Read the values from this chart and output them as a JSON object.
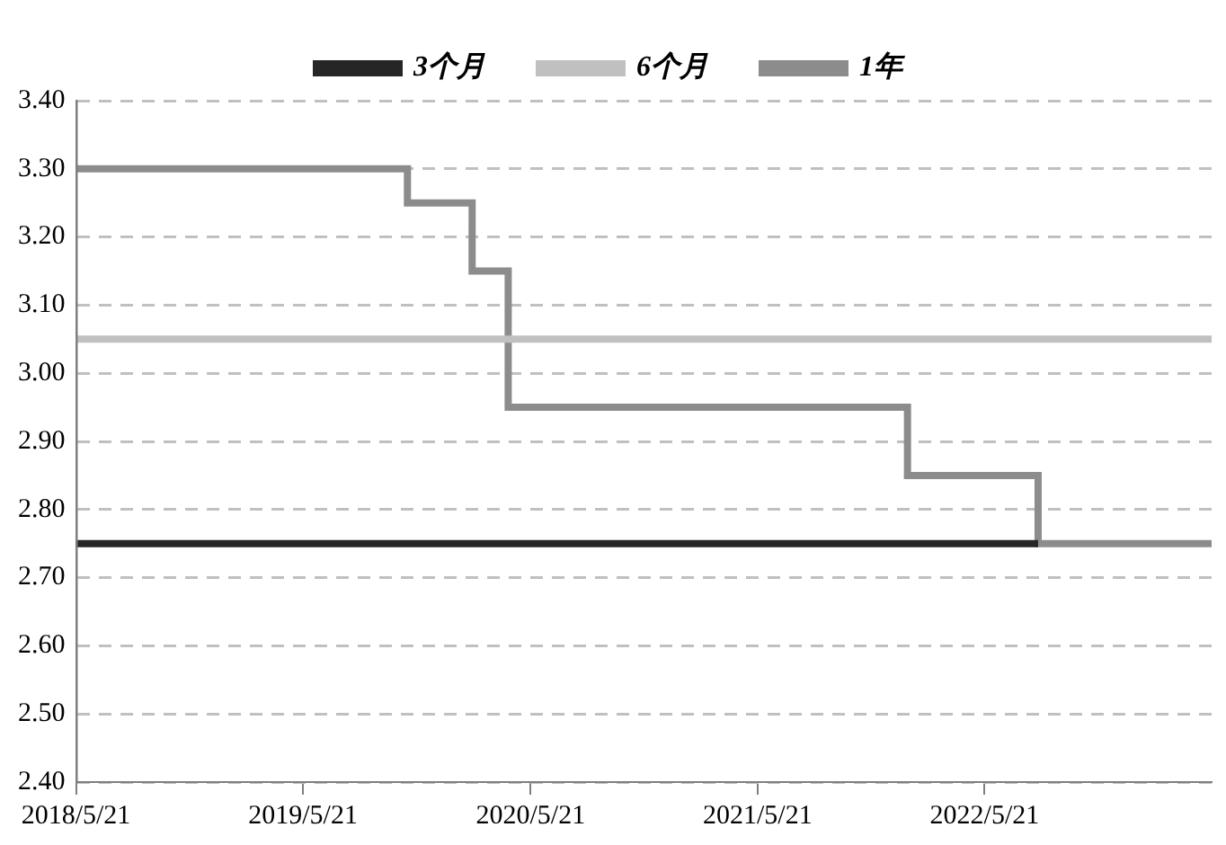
{
  "chart_data": {
    "type": "step",
    "legend": "top",
    "grid": "y",
    "xlim": [
      "2018-05-21",
      "2023-05-21"
    ],
    "xticks": [
      {
        "value": "2018-05-21",
        "label": "2018/5/21"
      },
      {
        "value": "2019-05-21",
        "label": "2019/5/21"
      },
      {
        "value": "2020-05-21",
        "label": "2020/5/21"
      },
      {
        "value": "2021-05-21",
        "label": "2021/5/21"
      },
      {
        "value": "2022-05-21",
        "label": "2022/5/21"
      }
    ],
    "ylim": [
      2.4,
      3.4
    ],
    "yticks": [
      {
        "value": 2.4,
        "label": "2.40"
      },
      {
        "value": 2.5,
        "label": "2.50"
      },
      {
        "value": 2.6,
        "label": "2.60"
      },
      {
        "value": 2.7,
        "label": "2.70"
      },
      {
        "value": 2.8,
        "label": "2.80"
      },
      {
        "value": 2.9,
        "label": "2.90"
      },
      {
        "value": 3.0,
        "label": "3.00"
      },
      {
        "value": 3.1,
        "label": "3.10"
      },
      {
        "value": 3.2,
        "label": "3.20"
      },
      {
        "value": 3.3,
        "label": "3.30"
      },
      {
        "value": 3.4,
        "label": "3.40"
      }
    ],
    "series": [
      {
        "name": "3个月",
        "color": "#262626",
        "x": [
          "2018-05-21",
          "2022-08-15"
        ],
        "values": [
          2.75,
          2.75
        ]
      },
      {
        "name": "6个月",
        "color": "#c0c0c0",
        "x": [
          "2018-05-21",
          "2023-05-21"
        ],
        "values": [
          3.05,
          3.05
        ]
      },
      {
        "name": "1年",
        "color": "#8c8c8c",
        "x": [
          "2018-05-21",
          "2019-11-05",
          "2020-02-17",
          "2020-04-15",
          "2022-01-17",
          "2022-08-15",
          "2023-05-21"
        ],
        "values": [
          3.3,
          3.25,
          3.15,
          2.95,
          2.85,
          2.75,
          2.75
        ]
      }
    ]
  }
}
